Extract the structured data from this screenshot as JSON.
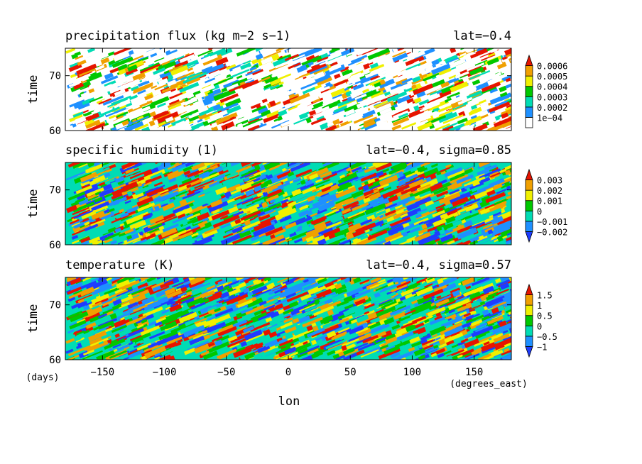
{
  "figure": {
    "xlabel": "lon",
    "x_unit": "(degrees_east)",
    "y_unit": "(days)"
  },
  "chart_data": [
    {
      "type": "heatmap",
      "title": "precipitation flux (kg m-2 s-1)",
      "subtitle": "lat=-0.4",
      "xlabel": "lon",
      "ylabel": "time",
      "xlim": [
        -180,
        180
      ],
      "ylim": [
        60,
        75
      ],
      "x_ticks": [
        -150,
        -100,
        -50,
        0,
        50,
        100,
        150
      ],
      "y_ticks": [
        60,
        70
      ],
      "colorbar": {
        "levels": [
          0.0001,
          0.0002,
          0.0003,
          0.0004,
          0.0005,
          0.0006
        ],
        "labels": [
          "1e-04",
          "0.0002",
          "0.0003",
          "0.0004",
          "0.0005",
          "0.0006"
        ],
        "colors": [
          "#ffffff",
          "#1e90ff",
          "#00dcb4",
          "#00c800",
          "#f0f000",
          "#f0a000",
          "#e61400"
        ],
        "extend": "max"
      }
    },
    {
      "type": "heatmap",
      "title": "specific humidity (1)",
      "subtitle": "lat=-0.4, sigma=0.85",
      "xlabel": "lon",
      "ylabel": "time",
      "xlim": [
        -180,
        180
      ],
      "ylim": [
        60,
        75
      ],
      "x_ticks": [
        -150,
        -100,
        -50,
        0,
        50,
        100,
        150
      ],
      "y_ticks": [
        60,
        70
      ],
      "colorbar": {
        "levels": [
          -0.002,
          -0.001,
          0,
          0.001,
          0.002,
          0.003
        ],
        "labels": [
          "-0.002",
          "-0.001",
          "0",
          "0.001",
          "0.002",
          "0.003"
        ],
        "colors": [
          "#1e3cff",
          "#1e90ff",
          "#00dcb4",
          "#00c800",
          "#f0f000",
          "#f0a000",
          "#e61400"
        ],
        "extend": "both"
      }
    },
    {
      "type": "heatmap",
      "title": "temperature (K)",
      "subtitle": "lat=-0.4, sigma=0.57",
      "xlabel": "lon",
      "ylabel": "time",
      "xlim": [
        -180,
        180
      ],
      "ylim": [
        60,
        75
      ],
      "x_ticks": [
        -150,
        -100,
        -50,
        0,
        50,
        100,
        150
      ],
      "y_ticks": [
        60,
        70
      ],
      "colorbar": {
        "levels": [
          -1,
          -0.5,
          0,
          0.5,
          1,
          1.5
        ],
        "labels": [
          "-1",
          "-0.5",
          "0",
          "0.5",
          "1",
          "1.5"
        ],
        "colors": [
          "#1e3cff",
          "#1e90ff",
          "#00dcb4",
          "#00c800",
          "#f0f000",
          "#f0a000",
          "#e61400"
        ],
        "extend": "both"
      }
    }
  ]
}
